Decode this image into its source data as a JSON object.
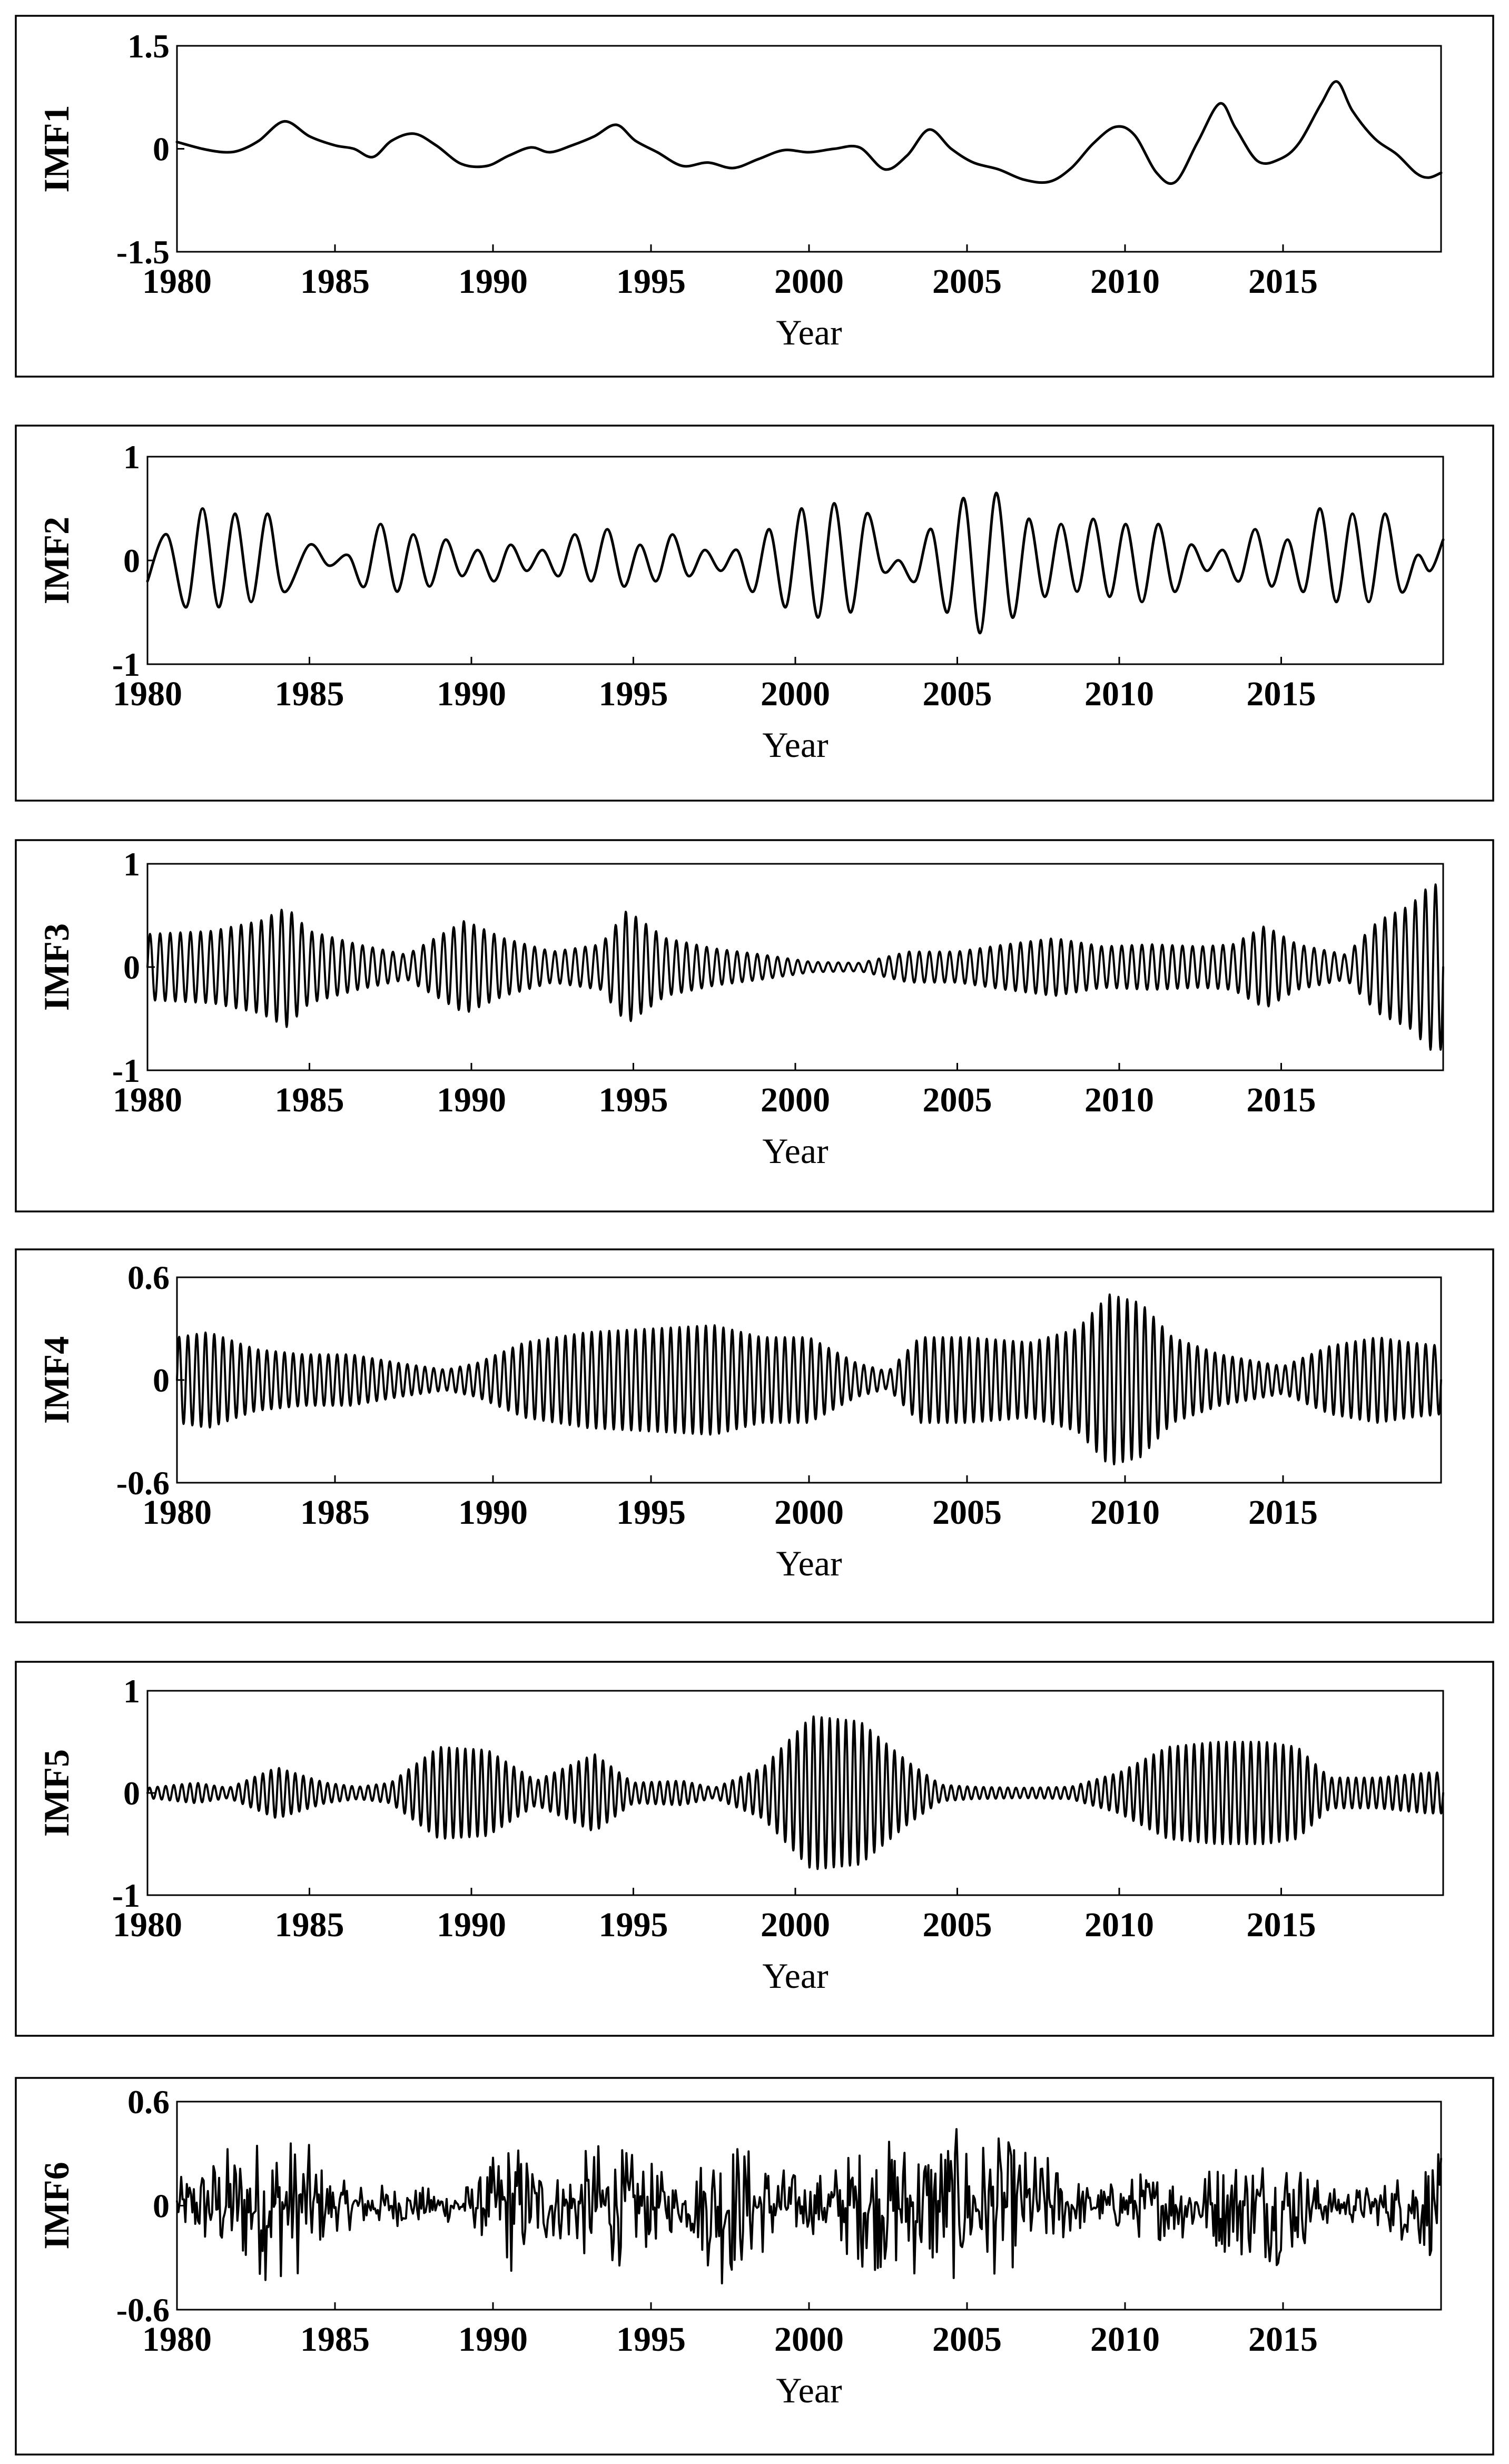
{
  "chart_data": [
    {
      "type": "line",
      "title": "",
      "xlabel": "Year",
      "ylabel": "IMF1",
      "xlim": [
        1980,
        2020
      ],
      "ylim": [
        -1.5,
        1.5
      ],
      "xticks": [
        "1980",
        "1985",
        "1990",
        "1995",
        "2000",
        "2005",
        "2010",
        "2015"
      ],
      "yticks": [
        "1.5",
        "0",
        "-1.5"
      ],
      "grid": false,
      "series": [
        {
          "x": [
            1980,
            1980.8,
            1981.5,
            1982,
            1982.6,
            1983.4,
            1984.2,
            1985,
            1985.6,
            1986.2,
            1986.8,
            1987.5,
            1988.2,
            1989,
            1989.8,
            1990.5,
            1991.2,
            1991.8,
            1992.5,
            1993.2,
            1993.9,
            1994.5,
            1995.2,
            1996,
            1996.8,
            1997.6,
            1998.4,
            1999.2,
            2000,
            2000.8,
            2001.6,
            2002.4,
            2003.1,
            2003.8,
            2004.5,
            2005.2,
            2006,
            2006.8,
            2007.6,
            2008.3,
            2009,
            2009.7,
            2010.3,
            2011,
            2011.6,
            2012.3,
            2013,
            2013.5,
            2014.2,
            2014.9,
            2015.5,
            2016.2,
            2016.7,
            2017.2,
            2017.9,
            2018.6,
            2019.2,
            2019.6,
            2020
          ],
          "y": [
            0.1,
            0.0,
            -0.05,
            -0.02,
            0.12,
            0.4,
            0.18,
            0.05,
            0.0,
            -0.12,
            0.12,
            0.22,
            0.05,
            -0.22,
            -0.25,
            -0.1,
            0.02,
            -0.05,
            0.05,
            0.18,
            0.35,
            0.12,
            -0.05,
            -0.25,
            -0.2,
            -0.28,
            -0.15,
            -0.02,
            -0.05,
            0.0,
            0.02,
            -0.3,
            -0.1,
            0.28,
            0.0,
            -0.2,
            -0.3,
            -0.45,
            -0.48,
            -0.28,
            0.08,
            0.32,
            0.2,
            -0.35,
            -0.48,
            0.1,
            0.66,
            0.3,
            -0.18,
            -0.15,
            0.08,
            0.65,
            0.98,
            0.55,
            0.15,
            -0.08,
            -0.35,
            -0.42,
            -0.35
          ]
        }
      ]
    },
    {
      "type": "line",
      "title": "",
      "xlabel": "Year",
      "ylabel": "IMF2",
      "xlim": [
        1980,
        2020
      ],
      "ylim": [
        -1,
        1
      ],
      "xticks": [
        "1980",
        "1985",
        "1990",
        "1995",
        "2000",
        "2005",
        "2010",
        "2015"
      ],
      "yticks": [
        "1",
        "0",
        "-1"
      ],
      "grid": false,
      "series": [
        {
          "x": [
            1980,
            1980.6,
            1981.2,
            1981.7,
            1982.2,
            1982.7,
            1983.2,
            1983.7,
            1984.2,
            1985,
            1985.6,
            1986.2,
            1986.7,
            1987.2,
            1987.7,
            1988.2,
            1988.7,
            1989.2,
            1989.7,
            1990.2,
            1990.7,
            1991.2,
            1991.7,
            1992.2,
            1992.7,
            1993.2,
            1993.7,
            1994.2,
            1994.7,
            1995.2,
            1995.7,
            1996.2,
            1996.7,
            1997.2,
            1997.7,
            1998.2,
            1998.7,
            1999.2,
            1999.7,
            2000.2,
            2000.7,
            2001.2,
            2001.7,
            2002.2,
            2002.7,
            2003.2,
            2003.7,
            2004.2,
            2004.7,
            2005.2,
            2005.7,
            2006.2,
            2006.7,
            2007.2,
            2007.7,
            2008.2,
            2008.7,
            2009.2,
            2009.7,
            2010.2,
            2010.7,
            2011.2,
            2011.7,
            2012.2,
            2012.7,
            2013.2,
            2013.7,
            2014.2,
            2014.7,
            2015.2,
            2015.7,
            2016.2,
            2016.7,
            2017.2,
            2017.7,
            2018.2,
            2018.7,
            2019.2,
            2019.6,
            2020
          ],
          "y": [
            -0.2,
            0.25,
            -0.45,
            0.5,
            -0.45,
            0.45,
            -0.4,
            0.45,
            -0.3,
            0.15,
            -0.05,
            0.05,
            -0.25,
            0.35,
            -0.3,
            0.25,
            -0.25,
            0.2,
            -0.15,
            0.1,
            -0.2,
            0.15,
            -0.1,
            0.1,
            -0.15,
            0.25,
            -0.2,
            0.3,
            -0.25,
            0.15,
            -0.2,
            0.25,
            -0.15,
            0.1,
            -0.1,
            0.1,
            -0.3,
            0.3,
            -0.45,
            0.5,
            -0.55,
            0.55,
            -0.5,
            0.45,
            -0.1,
            0.0,
            -0.2,
            0.3,
            -0.5,
            0.6,
            -0.7,
            0.65,
            -0.55,
            0.4,
            -0.35,
            0.35,
            -0.3,
            0.4,
            -0.35,
            0.35,
            -0.4,
            0.35,
            -0.3,
            0.15,
            -0.1,
            0.1,
            -0.2,
            0.3,
            -0.25,
            0.2,
            -0.3,
            0.5,
            -0.4,
            0.45,
            -0.4,
            0.45,
            -0.3,
            0.05,
            -0.1,
            0.2
          ]
        }
      ]
    },
    {
      "type": "line",
      "title": "",
      "xlabel": "Year",
      "ylabel": "IMF3",
      "xlim": [
        1980,
        2020
      ],
      "ylim": [
        -1,
        1
      ],
      "xticks": [
        "1980",
        "1985",
        "1990",
        "1995",
        "2000",
        "2005",
        "2010",
        "2015"
      ],
      "yticks": [
        "1",
        "0",
        "-1"
      ],
      "grid": false,
      "series": [
        {
          "x": [
            1980,
            1982,
            1983.5,
            1984.3,
            1985,
            1986.5,
            1988,
            1989.8,
            1991,
            1992.5,
            1994,
            1994.8,
            1996,
            1997.5,
            1999,
            2000.5,
            2002,
            2003.5,
            2005,
            2006.5,
            2008,
            2009.5,
            2011,
            2012.5,
            2013.5,
            2014.5,
            2015.5,
            2017,
            2018,
            2019,
            2019.6,
            2020
          ],
          "y": [
            0.32,
            0.35,
            0.45,
            0.58,
            0.35,
            0.22,
            0.12,
            0.45,
            0.28,
            0.15,
            0.22,
            0.55,
            0.28,
            0.18,
            0.12,
            0.05,
            0.04,
            0.15,
            0.15,
            0.22,
            0.28,
            0.2,
            0.22,
            0.2,
            0.22,
            0.4,
            0.22,
            0.12,
            0.45,
            0.6,
            0.8,
            0.8
          ]
        }
      ]
    },
    {
      "type": "line",
      "title": "",
      "xlabel": "Year",
      "ylabel": "IMF4",
      "xlim": [
        1980,
        2020
      ],
      "ylim": [
        -0.6,
        0.6
      ],
      "xticks": [
        "1980",
        "1985",
        "1990",
        "1995",
        "2000",
        "2005",
        "2010",
        "2015"
      ],
      "yticks": [
        "0.6",
        "0",
        "-0.6"
      ],
      "grid": false,
      "series": [
        {
          "x": [
            1980,
            1981,
            1982.5,
            1984,
            1985.5,
            1987,
            1988.5,
            1989.5,
            1991,
            1993,
            1995,
            1997,
            1998.5,
            2000,
            2001.5,
            2002.5,
            2003.5,
            2005,
            2007,
            2008.5,
            2009.5,
            2010.5,
            2011.5,
            2013,
            2015,
            2016.5,
            2018,
            2019,
            2020
          ],
          "y": [
            0.25,
            0.28,
            0.18,
            0.15,
            0.15,
            0.1,
            0.06,
            0.1,
            0.22,
            0.28,
            0.3,
            0.32,
            0.25,
            0.25,
            0.1,
            0.05,
            0.25,
            0.25,
            0.22,
            0.3,
            0.5,
            0.45,
            0.25,
            0.15,
            0.08,
            0.2,
            0.25,
            0.22,
            0.2
          ]
        }
      ]
    },
    {
      "type": "line",
      "title": "",
      "xlabel": "Year",
      "ylabel": "IMF5",
      "xlim": [
        1980,
        2020
      ],
      "ylim": [
        -1,
        1
      ],
      "xticks": [
        "1980",
        "1985",
        "1990",
        "1995",
        "2000",
        "2005",
        "2010",
        "2015"
      ],
      "yticks": [
        "1",
        "0",
        "-1"
      ],
      "grid": false,
      "series": [
        {
          "x": [
            1980,
            1981.5,
            1982.5,
            1984,
            1985.5,
            1986.5,
            1987.5,
            1989,
            1990.5,
            1992,
            1993.8,
            1995,
            1996.5,
            1997.5,
            1999,
            2000.5,
            2002,
            2003.5,
            2004.5,
            2005.5,
            2007,
            2008.5,
            2010,
            2011.5,
            2013,
            2014.5,
            2015.5,
            2016.5,
            2018,
            2019.5,
            2020
          ],
          "y": [
            0.05,
            0.1,
            0.05,
            0.25,
            0.1,
            0.06,
            0.1,
            0.45,
            0.42,
            0.12,
            0.38,
            0.1,
            0.12,
            0.05,
            0.25,
            0.75,
            0.7,
            0.3,
            0.08,
            0.06,
            0.05,
            0.06,
            0.2,
            0.45,
            0.5,
            0.5,
            0.45,
            0.15,
            0.15,
            0.2,
            0.2
          ]
        }
      ]
    },
    {
      "type": "line",
      "title": "",
      "xlabel": "Year",
      "ylabel": "IMF6",
      "xlim": [
        1980,
        2020
      ],
      "ylim": [
        -0.6,
        0.6
      ],
      "xticks": [
        "1980",
        "1985",
        "1990",
        "1995",
        "2000",
        "2005",
        "2010",
        "2015"
      ],
      "yticks": [
        "0.6",
        "0",
        "-0.6"
      ],
      "grid": false,
      "series": [
        {
          "x": [
            1980,
            1981.5,
            1983,
            1984,
            1985,
            1987,
            1988.5,
            1989.5,
            1990.5,
            1992,
            1993.5,
            1995,
            1996,
            1997.2,
            1998.5,
            2000,
            2001.5,
            2003,
            2004.5,
            2006,
            2007.5,
            2009,
            2010.5,
            2012,
            2013.5,
            2015,
            2016.5,
            2018,
            2019.5,
            2020
          ],
          "y": [
            0.15,
            0.35,
            0.45,
            0.4,
            0.15,
            0.12,
            0.1,
            0.15,
            0.42,
            0.2,
            0.4,
            0.25,
            0.12,
            0.48,
            0.3,
            0.15,
            0.35,
            0.42,
            0.45,
            0.4,
            0.3,
            0.1,
            0.2,
            0.2,
            0.3,
            0.35,
            0.1,
            0.12,
            0.3,
            0.3
          ]
        }
      ]
    }
  ]
}
